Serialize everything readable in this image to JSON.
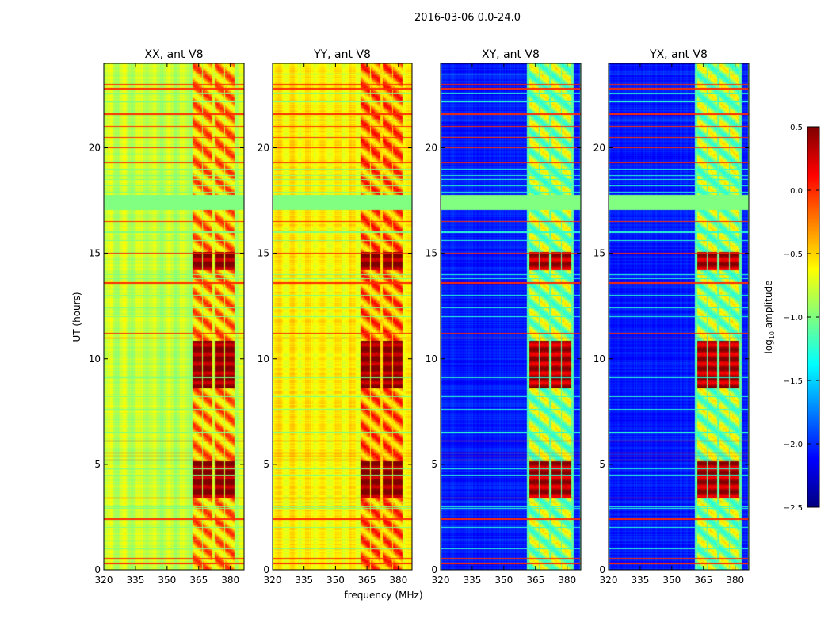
{
  "chart_data": {
    "type": "heatmap",
    "title": "2016-03-06 0.0-24.0",
    "xlabel": "frequency (MHz)",
    "ylabel": "UT (hours)",
    "xlim": [
      320,
      386.5
    ],
    "ylim": [
      0,
      24
    ],
    "xticks": [
      "320",
      "335",
      "350",
      "365",
      "380"
    ],
    "xtick_values": [
      320,
      335,
      350,
      365,
      380
    ],
    "yticks": [
      "0",
      "5",
      "10",
      "15",
      "20"
    ],
    "ytick_values": [
      0,
      5,
      10,
      15,
      20
    ],
    "colorbar": {
      "label": "log10 amplitude",
      "label_main": "log",
      "label_sub": "10",
      "label_rest": " amplitude",
      "colormap": "jet",
      "range": [
        -2.5,
        0.5
      ],
      "ticks": [
        "0.5",
        "0.0",
        "−0.5",
        "−1.0",
        "−1.5",
        "−2.0",
        "−2.5"
      ],
      "tick_values": [
        0.5,
        0.0,
        -0.5,
        -1.0,
        -1.5,
        -2.0,
        -2.5
      ]
    },
    "panels": [
      {
        "title": "XX, ant V8",
        "background_level": -0.8,
        "band_level": -0.35,
        "active_level": 0.45,
        "line_level": -1.0
      },
      {
        "title": "YY, ant V8",
        "background_level": -0.6,
        "band_level": -0.25,
        "active_level": 0.45,
        "line_level": -1.0
      },
      {
        "title": "XY, ant V8",
        "background_level": -2.05,
        "band_level": -0.9,
        "active_level": 0.35,
        "line_level": -1.25
      },
      {
        "title": "YX, ant V8",
        "background_level": -2.05,
        "band_level": -0.9,
        "active_level": 0.35,
        "line_level": -1.25
      }
    ],
    "band_subchannels_mhz": [
      [
        362,
        366.5
      ],
      [
        367,
        371.5
      ],
      [
        372.5,
        377
      ],
      [
        377.5,
        382
      ]
    ],
    "high_activity_hours": [
      [
        3.4,
        5.15
      ],
      [
        8.6,
        10.85
      ],
      [
        14.2,
        15.05
      ]
    ],
    "no_data_hours": [
      [
        17.05,
        17.75
      ]
    ],
    "flagged_hours_red": [
      0.3,
      0.55,
      2.4,
      3.4,
      5.2,
      5.4,
      5.55,
      6.1,
      11.0,
      11.2,
      13.6,
      15.0,
      16.5,
      19.3,
      20.0,
      20.5,
      21.0,
      21.6,
      22.8,
      23.0
    ],
    "flagged_hours_cyan": [
      1.0,
      1.4,
      2.0,
      2.9,
      3.0,
      3.2,
      4.5,
      4.8,
      6.5,
      7.6,
      8.2,
      9.1,
      12.0,
      12.4,
      13.0,
      13.8,
      14.0,
      15.6,
      16.0,
      17.9,
      18.2,
      18.5,
      18.7,
      19.0,
      21.3,
      22.2,
      22.6,
      23.5
    ]
  }
}
